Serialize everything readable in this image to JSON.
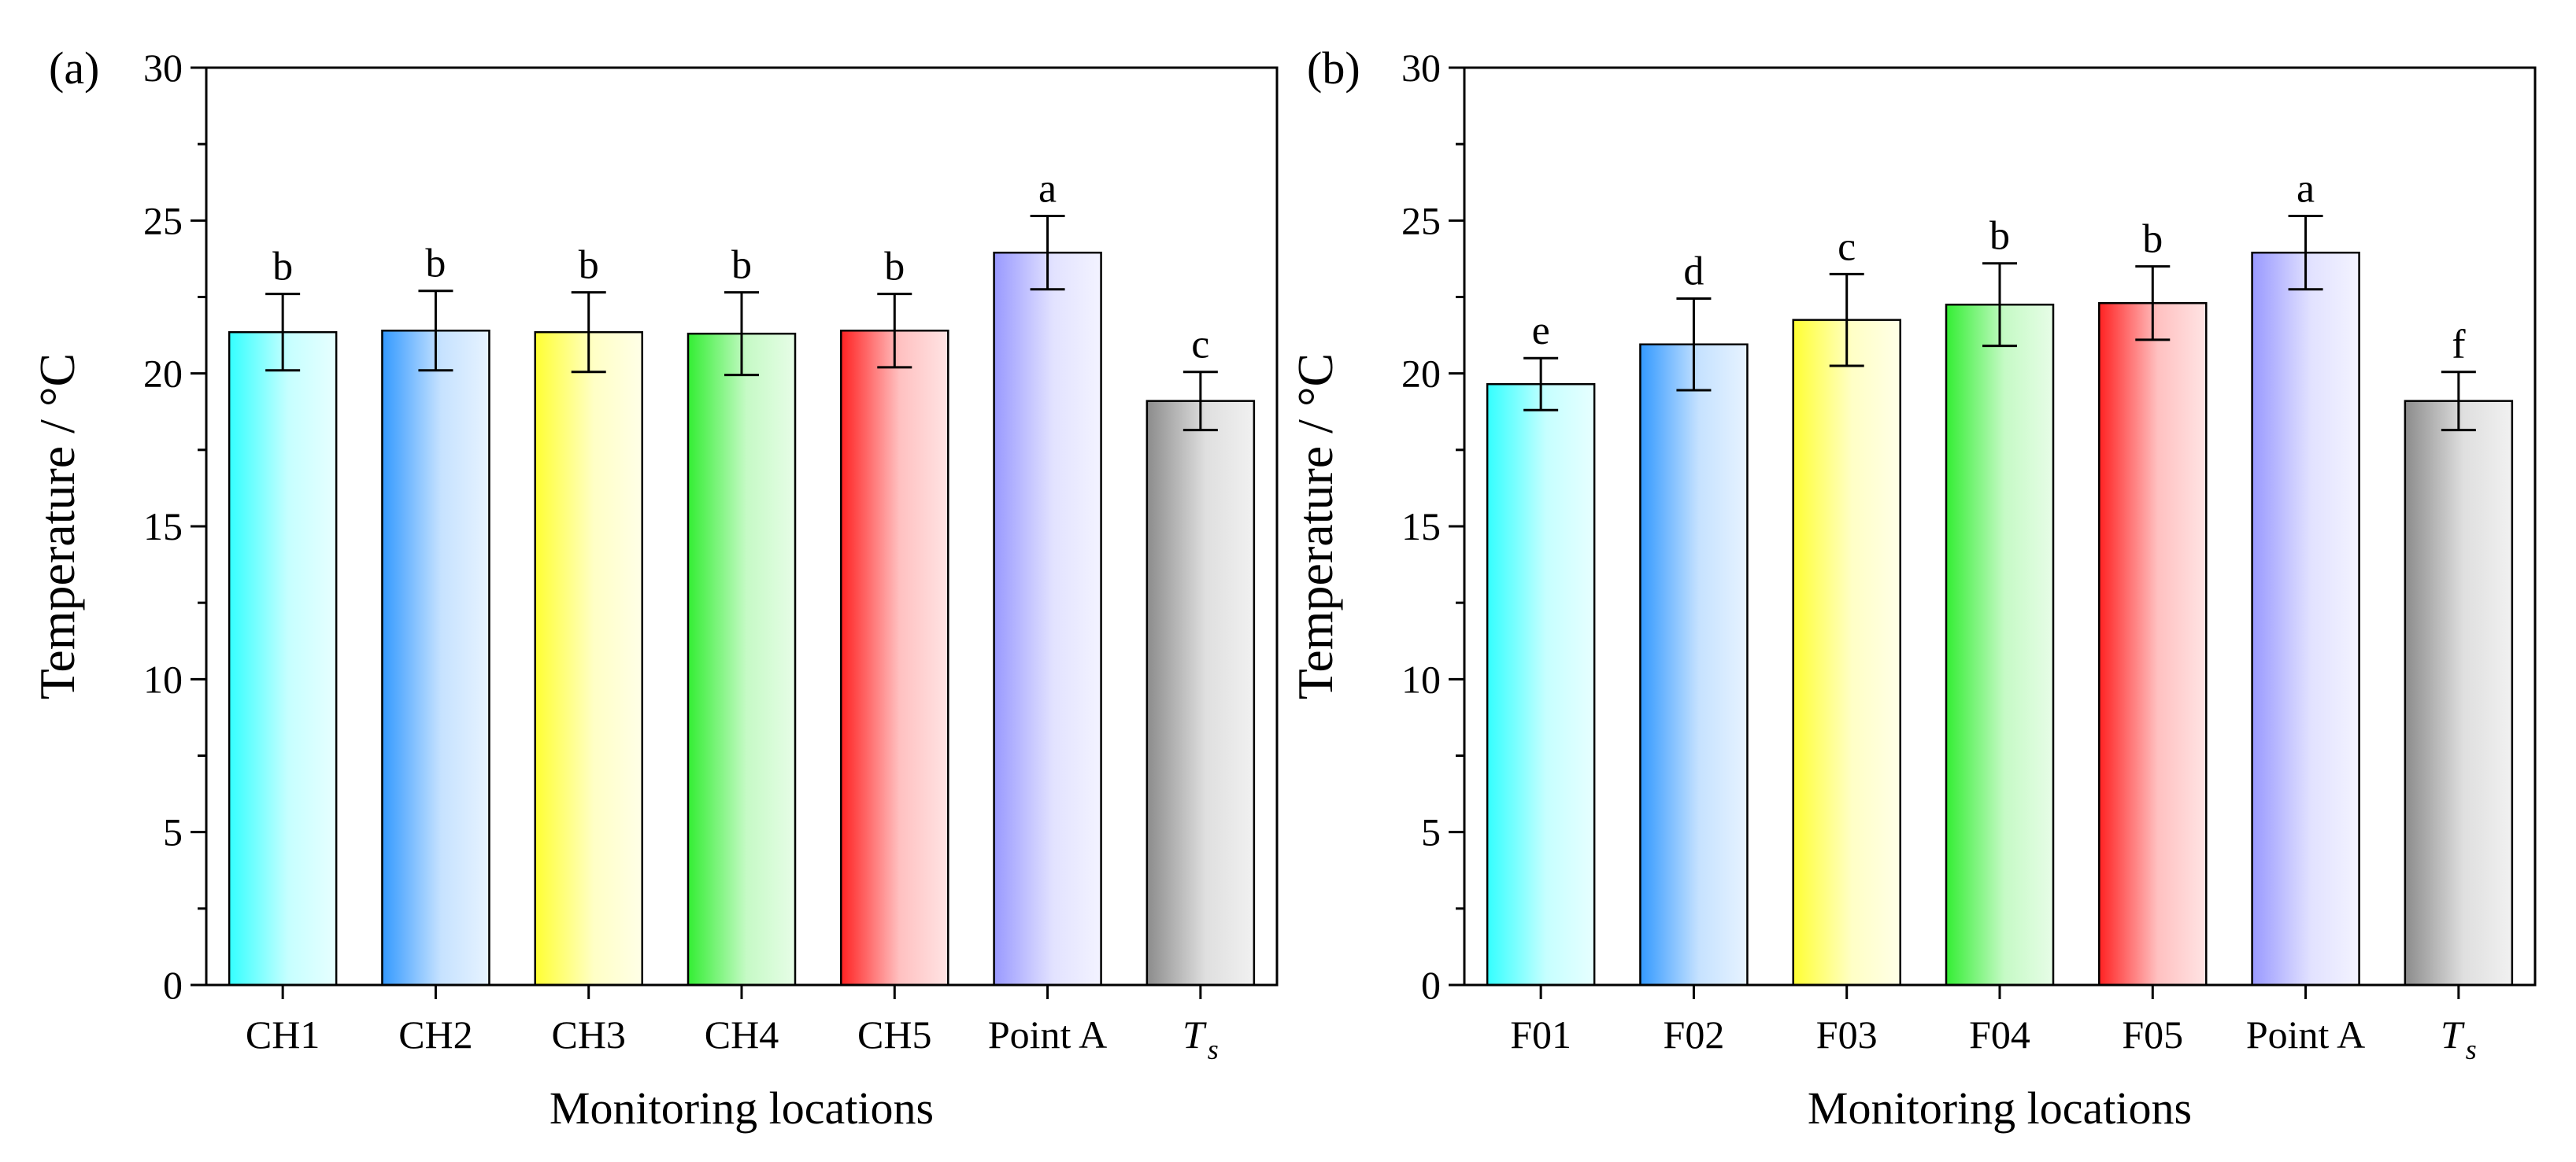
{
  "chart_data": [
    {
      "type": "bar",
      "panel_label": "(a)",
      "categories": [
        "CH1",
        "CH2",
        "CH3",
        "CH4",
        "CH5",
        "Point A",
        "T_s"
      ],
      "category_display": [
        {
          "main": "CH1",
          "sub": ""
        },
        {
          "main": "CH2",
          "sub": ""
        },
        {
          "main": "CH3",
          "sub": ""
        },
        {
          "main": "CH4",
          "sub": ""
        },
        {
          "main": "CH5",
          "sub": ""
        },
        {
          "main": "Point A",
          "sub": ""
        },
        {
          "main": "T",
          "sub": "s"
        }
      ],
      "values": [
        21.35,
        21.4,
        21.35,
        21.3,
        21.4,
        23.95,
        19.1
      ],
      "errors": [
        1.25,
        1.3,
        1.3,
        1.35,
        1.2,
        1.2,
        0.95
      ],
      "significance": [
        "b",
        "b",
        "b",
        "b",
        "b",
        "a",
        "c"
      ],
      "colors": [
        "#33ffff",
        "#3399ff",
        "#ffff33",
        "#33ee33",
        "#ff2222",
        "#9999ff",
        "#8c8c8c"
      ],
      "xlabel": "Monitoring locations",
      "ylabel": "Temperature / °C",
      "ylim": [
        0,
        30
      ],
      "yticks": [
        0,
        5,
        10,
        15,
        20,
        25,
        30
      ]
    },
    {
      "type": "bar",
      "panel_label": "(b)",
      "categories": [
        "F01",
        "F02",
        "F03",
        "F04",
        "F05",
        "Point A",
        "T_s"
      ],
      "category_display": [
        {
          "main": "F01",
          "sub": ""
        },
        {
          "main": "F02",
          "sub": ""
        },
        {
          "main": "F03",
          "sub": ""
        },
        {
          "main": "F04",
          "sub": ""
        },
        {
          "main": "F05",
          "sub": ""
        },
        {
          "main": "Point A",
          "sub": ""
        },
        {
          "main": "T",
          "sub": "s"
        }
      ],
      "values": [
        19.65,
        20.95,
        21.75,
        22.25,
        22.3,
        23.95,
        19.1
      ],
      "errors": [
        0.85,
        1.5,
        1.5,
        1.35,
        1.2,
        1.2,
        0.95
      ],
      "significance": [
        "e",
        "d",
        "c",
        "b",
        "b",
        "a",
        "f"
      ],
      "colors": [
        "#33ffff",
        "#3399ff",
        "#ffff33",
        "#33ee33",
        "#ff2222",
        "#9999ff",
        "#8c8c8c"
      ],
      "xlabel": "Monitoring locations",
      "ylabel": "Temperature / °C",
      "ylim": [
        0,
        30
      ],
      "yticks": [
        0,
        5,
        10,
        15,
        20,
        25,
        30
      ]
    }
  ]
}
